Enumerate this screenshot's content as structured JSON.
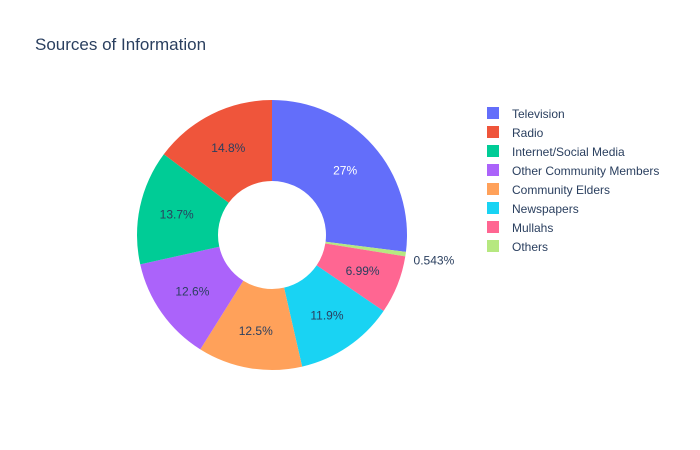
{
  "chart_data": {
    "type": "pie",
    "title": "Sources of Information",
    "hole": true,
    "legend_position": "right",
    "slices": [
      {
        "label": "Television",
        "value": 27,
        "display": "27%",
        "color": "#636efa"
      },
      {
        "label": "Others",
        "value": 0.543,
        "display": "0.543%",
        "color": "#b6e880"
      },
      {
        "label": "Mullahs",
        "value": 6.99,
        "display": "6.99%",
        "color": "#ff6692"
      },
      {
        "label": "Newspapers",
        "value": 11.9,
        "display": "11.9%",
        "color": "#19d3f3"
      },
      {
        "label": "Community Elders",
        "value": 12.5,
        "display": "12.5%",
        "color": "#ffa15a"
      },
      {
        "label": "Other Community Members",
        "value": 12.6,
        "display": "12.6%",
        "color": "#ab63fa"
      },
      {
        "label": "Internet/Social Media",
        "value": 13.7,
        "display": "13.7%",
        "color": "#00cc96"
      },
      {
        "label": "Radio",
        "value": 14.8,
        "display": "14.8%",
        "color": "#ef553b"
      }
    ],
    "legend": [
      {
        "label": "Television",
        "color": "#636efa"
      },
      {
        "label": "Radio",
        "color": "#ef553b"
      },
      {
        "label": "Internet/Social Media",
        "color": "#00cc96"
      },
      {
        "label": "Other Community Members",
        "color": "#ab63fa"
      },
      {
        "label": "Community Elders",
        "color": "#ffa15a"
      },
      {
        "label": "Newspapers",
        "color": "#19d3f3"
      },
      {
        "label": "Mullahs",
        "color": "#ff6692"
      },
      {
        "label": "Others",
        "color": "#b6e880"
      }
    ]
  }
}
